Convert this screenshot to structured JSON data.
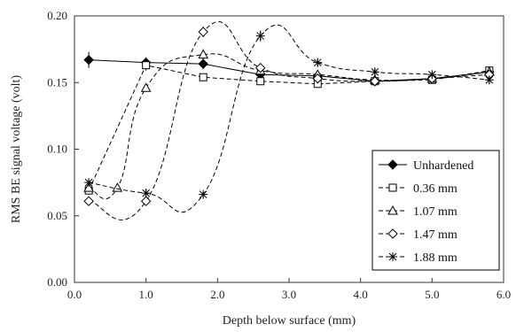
{
  "chart_data": {
    "type": "line",
    "title": "",
    "xlabel": "Depth below surface (mm)",
    "ylabel": "RMS BE signal voltage (volt)",
    "xlim": [
      0,
      6
    ],
    "ylim": [
      0,
      0.2
    ],
    "xticks": [
      "0.0",
      "1.0",
      "2.0",
      "3.0",
      "4.0",
      "5.0",
      "6.0"
    ],
    "yticks": [
      "0.00",
      "0.05",
      "0.10",
      "0.15",
      "0.20"
    ],
    "grid": false,
    "legend_position": "bottom-right",
    "series": [
      {
        "name": "Unhardened",
        "marker": "filled-diamond",
        "line": "solid",
        "smooth": false,
        "x": [
          0.2,
          1.0,
          1.8,
          2.6,
          3.4,
          4.2,
          5.0,
          5.8
        ],
        "y": [
          0.167,
          0.165,
          0.164,
          0.156,
          0.155,
          0.151,
          0.153,
          0.158
        ],
        "err": [
          0.006,
          0.004,
          0.004,
          0.003,
          0.003,
          0.003,
          0.003,
          0.003
        ]
      },
      {
        "name": "0.36 mm",
        "marker": "open-square",
        "line": "dashed",
        "smooth": false,
        "x": [
          0.2,
          1.0,
          1.8,
          2.6,
          3.4,
          4.2,
          5.0,
          5.8
        ],
        "y": [
          0.069,
          0.163,
          0.154,
          0.151,
          0.149,
          0.151,
          0.152,
          0.159
        ],
        "err": [
          0.003,
          0.004,
          0.002,
          0.002,
          0.002,
          0.002,
          0.002,
          0.003
        ]
      },
      {
        "name": "1.07 mm",
        "marker": "open-triangle",
        "line": "dashed",
        "smooth": true,
        "x": [
          0.2,
          0.6,
          1.0,
          1.8,
          2.6,
          3.4,
          4.2,
          5.0,
          5.8
        ],
        "y": [
          0.071,
          0.071,
          0.146,
          0.171,
          0.159,
          0.156,
          0.152,
          0.153,
          0.158
        ],
        "err": [
          0.002,
          0.002,
          0.003,
          0.004,
          0.003,
          0.002,
          0.002,
          0.002,
          0.003
        ]
      },
      {
        "name": "1.47 mm",
        "marker": "open-diamond",
        "line": "dashed",
        "smooth": true,
        "x": [
          0.2,
          1.0,
          1.8,
          2.6,
          3.4,
          4.2,
          5.0,
          5.8
        ],
        "y": [
          0.061,
          0.061,
          0.188,
          0.161,
          0.153,
          0.151,
          0.153,
          0.156
        ],
        "err": [
          0.002,
          0.003,
          0.004,
          0.003,
          0.002,
          0.002,
          0.002,
          0.003
        ]
      },
      {
        "name": "1.88 mm",
        "marker": "asterisk",
        "line": "dashed",
        "smooth": true,
        "x": [
          0.2,
          1.0,
          1.8,
          2.6,
          3.4,
          4.2,
          5.0,
          5.8
        ],
        "y": [
          0.075,
          0.067,
          0.066,
          0.185,
          0.165,
          0.158,
          0.156,
          0.152
        ],
        "err": [
          0.002,
          0.003,
          0.002,
          0.004,
          0.003,
          0.003,
          0.002,
          0.003
        ]
      }
    ]
  }
}
